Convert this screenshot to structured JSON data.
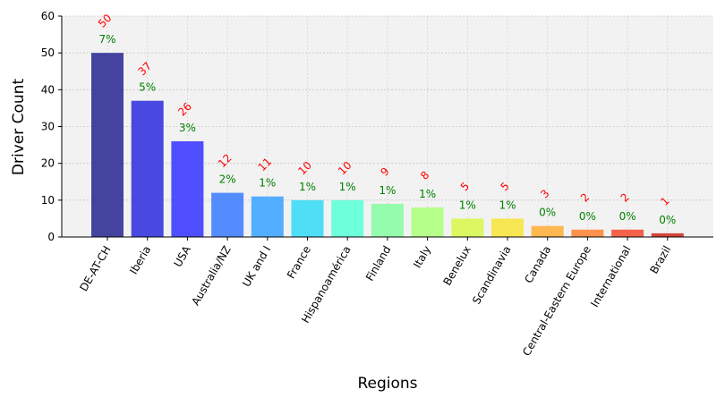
{
  "chart_data": {
    "type": "bar",
    "xlabel": "Regions",
    "ylabel": "Driver Count",
    "ylim": [
      0,
      60
    ],
    "yticks": [
      "0",
      "10",
      "20",
      "30",
      "40",
      "50",
      "60"
    ],
    "grid": true,
    "categories": [
      "DE-AT-CH",
      "Iberia",
      "USA",
      "Australia/NZ",
      "UK and I",
      "France",
      "Hispanoamérica",
      "Finland",
      "Italy",
      "Benelux",
      "Scandinavia",
      "Canada",
      "Central-Eastern Europe",
      "International",
      "Brazil"
    ],
    "values": [
      50,
      37,
      26,
      12,
      11,
      10,
      10,
      9,
      8,
      5,
      5,
      3,
      2,
      2,
      1
    ],
    "value_labels": [
      "50",
      "37",
      "26",
      "12",
      "11",
      "10",
      "10",
      "9",
      "8",
      "5",
      "5",
      "3",
      "2",
      "2",
      "1"
    ],
    "percent_labels": [
      "7%",
      "5%",
      "3%",
      "2%",
      "1%",
      "1%",
      "1%",
      "1%",
      "1%",
      "1%",
      "1%",
      "0%",
      "0%",
      "0%",
      "0%"
    ],
    "colors": [
      "#3a3a9a",
      "#3f3fe0",
      "#4646ff",
      "#4a86ff",
      "#4aaaff",
      "#45dcf5",
      "#66ffd9",
      "#8ffba9",
      "#b1ff85",
      "#d9f75a",
      "#f7e64a",
      "#ffb347",
      "#ff8c42",
      "#f25a3f",
      "#d23a2e"
    ],
    "value_label_color": "#ff0000",
    "percent_label_color": "#008000",
    "plot_background": "#f2f2f2"
  }
}
